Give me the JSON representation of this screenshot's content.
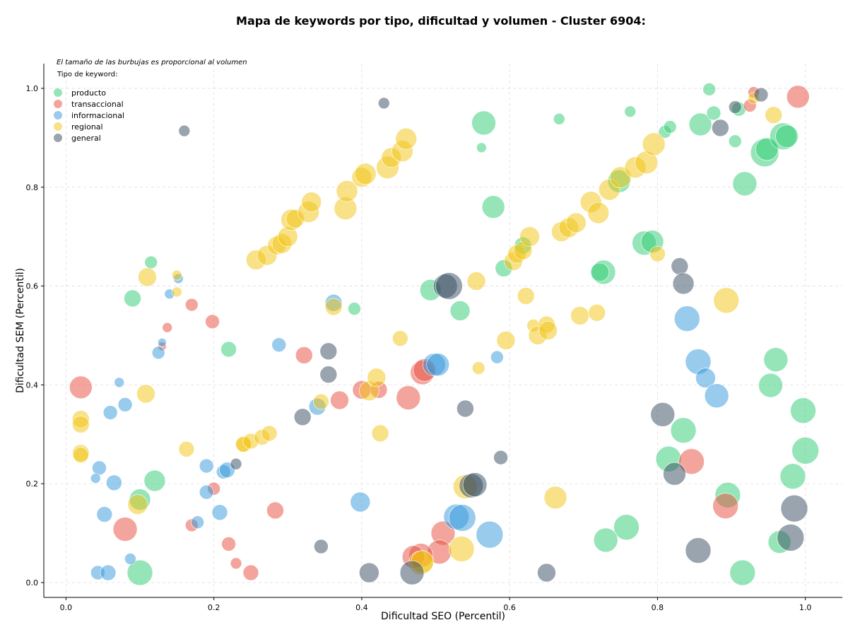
{
  "chart_data": {
    "type": "scatter",
    "title": "Mapa de keywords por tipo, dificultad y volumen - Cluster 6904:",
    "xlabel": "Dificultad SEO (Percentil)",
    "ylabel": "Dificultad SEM (Percentil)",
    "xlim": [
      -0.03,
      1.05
    ],
    "ylim": [
      -0.03,
      1.05
    ],
    "xticks": [
      "0.0",
      "0.2",
      "0.4",
      "0.6",
      "0.8",
      "1.0"
    ],
    "yticks": [
      "0.0",
      "0.2",
      "0.4",
      "0.6",
      "0.8",
      "1.0"
    ],
    "grid": true,
    "note": "El tamaño de las burbujas es proporcional al volumen",
    "legend_title": "Tipo de keyword:",
    "legend_position": "top-left",
    "size_unit": "relative volume",
    "series": [
      {
        "name": "producto",
        "color": "#2ecc71",
        "points": [
          [
            0.09,
            0.575,
            12
          ],
          [
            0.115,
            0.648,
            9
          ],
          [
            0.1,
            0.168,
            15
          ],
          [
            0.12,
            0.206,
            15
          ],
          [
            0.1,
            0.02,
            18
          ],
          [
            0.22,
            0.472,
            11
          ],
          [
            0.39,
            0.554,
            9
          ],
          [
            0.493,
            0.592,
            15
          ],
          [
            0.533,
            0.55,
            14
          ],
          [
            0.565,
            0.93,
            17
          ],
          [
            0.562,
            0.88,
            7
          ],
          [
            0.578,
            0.76,
            16
          ],
          [
            0.592,
            0.636,
            12
          ],
          [
            0.618,
            0.682,
            12
          ],
          [
            0.727,
            0.628,
            17
          ],
          [
            0.722,
            0.628,
            13
          ],
          [
            0.748,
            0.812,
            16
          ],
          [
            0.763,
            0.953,
            8
          ],
          [
            0.782,
            0.687,
            17
          ],
          [
            0.793,
            0.69,
            16
          ],
          [
            0.81,
            0.912,
            9
          ],
          [
            0.817,
            0.922,
            9
          ],
          [
            0.858,
            0.927,
            16
          ],
          [
            0.87,
            0.998,
            9
          ],
          [
            0.876,
            0.95,
            10
          ],
          [
            0.905,
            0.893,
            9
          ],
          [
            0.91,
            0.958,
            10
          ],
          [
            0.918,
            0.807,
            17
          ],
          [
            0.945,
            0.87,
            20
          ],
          [
            0.948,
            0.877,
            16
          ],
          [
            0.97,
            0.903,
            19
          ],
          [
            0.975,
            0.903,
            16
          ],
          [
            0.667,
            0.938,
            8
          ],
          [
            0.96,
            0.451,
            17
          ],
          [
            0.953,
            0.399,
            17
          ],
          [
            0.997,
            0.348,
            18
          ],
          [
            1.0,
            0.267,
            19
          ],
          [
            0.983,
            0.215,
            18
          ],
          [
            0.895,
            0.177,
            18
          ],
          [
            0.835,
            0.308,
            18
          ],
          [
            0.815,
            0.25,
            18
          ],
          [
            0.758,
            0.112,
            18
          ],
          [
            0.73,
            0.086,
            17
          ],
          [
            0.915,
            0.02,
            18
          ],
          [
            0.965,
            0.082,
            16
          ]
        ]
      },
      {
        "name": "transaccional",
        "color": "#e74c3c",
        "points": [
          [
            0.02,
            0.395,
            16
          ],
          [
            0.137,
            0.516,
            7
          ],
          [
            0.13,
            0.478,
            6
          ],
          [
            0.17,
            0.562,
            9
          ],
          [
            0.198,
            0.528,
            10
          ],
          [
            0.08,
            0.108,
            17
          ],
          [
            0.17,
            0.116,
            9
          ],
          [
            0.2,
            0.19,
            9
          ],
          [
            0.22,
            0.078,
            10
          ],
          [
            0.23,
            0.039,
            8
          ],
          [
            0.25,
            0.02,
            11
          ],
          [
            0.283,
            0.146,
            12
          ],
          [
            0.322,
            0.46,
            12
          ],
          [
            0.37,
            0.369,
            13
          ],
          [
            0.4,
            0.39,
            13
          ],
          [
            0.423,
            0.39,
            12
          ],
          [
            0.463,
            0.374,
            17
          ],
          [
            0.482,
            0.425,
            17
          ],
          [
            0.485,
            0.43,
            16
          ],
          [
            0.51,
            0.1,
            17
          ],
          [
            0.505,
            0.062,
            17
          ],
          [
            0.48,
            0.055,
            17
          ],
          [
            0.47,
            0.052,
            16
          ],
          [
            0.846,
            0.245,
            18
          ],
          [
            0.892,
            0.155,
            18
          ],
          [
            0.93,
            0.992,
            8
          ],
          [
            0.925,
            0.965,
            9
          ],
          [
            0.99,
            0.983,
            16
          ]
        ]
      },
      {
        "name": "informacional",
        "color": "#3498db",
        "points": [
          [
            0.072,
            0.405,
            7
          ],
          [
            0.08,
            0.36,
            10
          ],
          [
            0.06,
            0.344,
            10
          ],
          [
            0.045,
            0.232,
            10
          ],
          [
            0.04,
            0.211,
            7
          ],
          [
            0.065,
            0.202,
            11
          ],
          [
            0.052,
            0.138,
            11
          ],
          [
            0.043,
            0.02,
            10
          ],
          [
            0.057,
            0.02,
            11
          ],
          [
            0.087,
            0.048,
            8
          ],
          [
            0.125,
            0.465,
            9
          ],
          [
            0.13,
            0.486,
            6
          ],
          [
            0.14,
            0.584,
            7
          ],
          [
            0.152,
            0.615,
            7
          ],
          [
            0.178,
            0.122,
            9
          ],
          [
            0.19,
            0.183,
            10
          ],
          [
            0.19,
            0.236,
            10
          ],
          [
            0.208,
            0.142,
            11
          ],
          [
            0.213,
            0.224,
            10
          ],
          [
            0.218,
            0.228,
            11
          ],
          [
            0.288,
            0.481,
            10
          ],
          [
            0.34,
            0.356,
            12
          ],
          [
            0.362,
            0.566,
            12
          ],
          [
            0.398,
            0.163,
            14
          ],
          [
            0.498,
            0.441,
            16
          ],
          [
            0.503,
            0.441,
            16
          ],
          [
            0.528,
            0.133,
            18
          ],
          [
            0.536,
            0.131,
            19
          ],
          [
            0.573,
            0.097,
            19
          ],
          [
            0.583,
            0.456,
            9
          ],
          [
            0.84,
            0.534,
            18
          ],
          [
            0.855,
            0.447,
            18
          ],
          [
            0.865,
            0.414,
            14
          ],
          [
            0.88,
            0.378,
            17
          ]
        ]
      },
      {
        "name": "regional",
        "color": "#f1c40f",
        "points": [
          [
            0.02,
            0.331,
            12
          ],
          [
            0.02,
            0.32,
            12
          ],
          [
            0.02,
            0.262,
            12
          ],
          [
            0.02,
            0.258,
            11
          ],
          [
            0.097,
            0.158,
            14
          ],
          [
            0.108,
            0.382,
            13
          ],
          [
            0.11,
            0.618,
            13
          ],
          [
            0.15,
            0.622,
            7
          ],
          [
            0.15,
            0.588,
            7
          ],
          [
            0.163,
            0.27,
            11
          ],
          [
            0.24,
            0.279,
            11
          ],
          [
            0.24,
            0.28,
            11
          ],
          [
            0.25,
            0.286,
            11
          ],
          [
            0.265,
            0.294,
            11
          ],
          [
            0.275,
            0.302,
            11
          ],
          [
            0.257,
            0.653,
            14
          ],
          [
            0.272,
            0.662,
            14
          ],
          [
            0.285,
            0.682,
            13
          ],
          [
            0.292,
            0.686,
            14
          ],
          [
            0.3,
            0.7,
            14
          ],
          [
            0.305,
            0.734,
            15
          ],
          [
            0.31,
            0.736,
            13
          ],
          [
            0.328,
            0.75,
            15
          ],
          [
            0.332,
            0.77,
            14
          ],
          [
            0.345,
            0.366,
            11
          ],
          [
            0.362,
            0.558,
            12
          ],
          [
            0.378,
            0.757,
            16
          ],
          [
            0.38,
            0.792,
            15
          ],
          [
            0.4,
            0.82,
            14
          ],
          [
            0.405,
            0.827,
            15
          ],
          [
            0.41,
            0.388,
            14
          ],
          [
            0.42,
            0.415,
            13
          ],
          [
            0.425,
            0.302,
            12
          ],
          [
            0.435,
            0.84,
            16
          ],
          [
            0.44,
            0.86,
            14
          ],
          [
            0.455,
            0.873,
            15
          ],
          [
            0.46,
            0.898,
            15
          ],
          [
            0.452,
            0.494,
            11
          ],
          [
            0.48,
            0.04,
            17
          ],
          [
            0.482,
            0.042,
            16
          ],
          [
            0.535,
            0.068,
            18
          ],
          [
            0.54,
            0.194,
            17
          ],
          [
            0.555,
            0.61,
            13
          ],
          [
            0.558,
            0.434,
            9
          ],
          [
            0.595,
            0.49,
            13
          ],
          [
            0.605,
            0.65,
            13
          ],
          [
            0.61,
            0.665,
            13
          ],
          [
            0.618,
            0.672,
            13
          ],
          [
            0.622,
            0.58,
            12
          ],
          [
            0.627,
            0.7,
            14
          ],
          [
            0.632,
            0.52,
            9
          ],
          [
            0.638,
            0.5,
            13
          ],
          [
            0.65,
            0.522,
            12
          ],
          [
            0.652,
            0.51,
            13
          ],
          [
            0.662,
            0.172,
            16
          ],
          [
            0.67,
            0.71,
            14
          ],
          [
            0.68,
            0.718,
            14
          ],
          [
            0.69,
            0.728,
            14
          ],
          [
            0.695,
            0.54,
            13
          ],
          [
            0.71,
            0.77,
            15
          ],
          [
            0.72,
            0.748,
            15
          ],
          [
            0.718,
            0.546,
            12
          ],
          [
            0.735,
            0.795,
            15
          ],
          [
            0.75,
            0.82,
            15
          ],
          [
            0.77,
            0.84,
            15
          ],
          [
            0.785,
            0.85,
            16
          ],
          [
            0.795,
            0.887,
            16
          ],
          [
            0.8,
            0.665,
            11
          ],
          [
            0.893,
            0.571,
            18
          ],
          [
            0.957,
            0.946,
            12
          ],
          [
            0.93,
            0.98,
            8
          ]
        ]
      },
      {
        "name": "general",
        "color": "#34495e",
        "points": [
          [
            0.16,
            0.914,
            8
          ],
          [
            0.23,
            0.24,
            8
          ],
          [
            0.32,
            0.335,
            12
          ],
          [
            0.345,
            0.073,
            10
          ],
          [
            0.355,
            0.468,
            12
          ],
          [
            0.355,
            0.421,
            12
          ],
          [
            0.41,
            0.02,
            14
          ],
          [
            0.43,
            0.97,
            8
          ],
          [
            0.468,
            0.02,
            17
          ],
          [
            0.513,
            0.6,
            17
          ],
          [
            0.518,
            0.6,
            19
          ],
          [
            0.54,
            0.352,
            12
          ],
          [
            0.548,
            0.196,
            17
          ],
          [
            0.553,
            0.198,
            17
          ],
          [
            0.588,
            0.253,
            10
          ],
          [
            0.65,
            0.02,
            13
          ],
          [
            0.807,
            0.34,
            17
          ],
          [
            0.823,
            0.22,
            16
          ],
          [
            0.83,
            0.64,
            12
          ],
          [
            0.835,
            0.605,
            15
          ],
          [
            0.855,
            0.065,
            18
          ],
          [
            0.885,
            0.92,
            12
          ],
          [
            0.905,
            0.962,
            9
          ],
          [
            0.94,
            0.987,
            10
          ],
          [
            0.985,
            0.15,
            19
          ],
          [
            0.98,
            0.091,
            19
          ]
        ]
      }
    ]
  }
}
